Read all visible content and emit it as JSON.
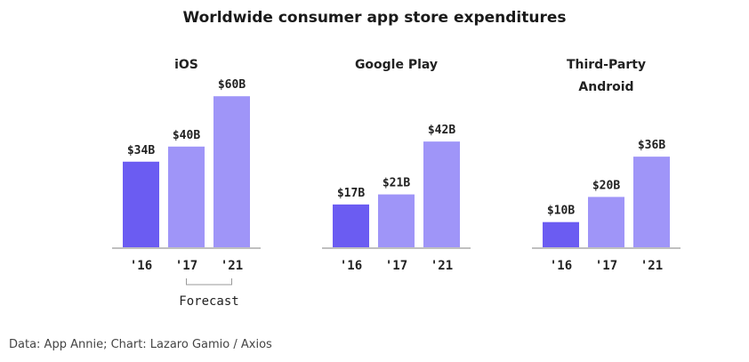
{
  "title": "Worldwide consumer app store expenditures",
  "source": "Data: App Annie; Chart: Lazaro Gamio / Axios",
  "colors": {
    "first": "#6b5cf2",
    "rest": "#9f95f8",
    "axis": "#9a9a9a",
    "bracket": "#999999"
  },
  "chart_data": {
    "type": "bar",
    "title": "Worldwide consumer app store expenditures",
    "unit": "$B",
    "categories": [
      "'16",
      "'17",
      "'21"
    ],
    "annotation": {
      "text": "Forecast",
      "spans": [
        "'17",
        "'21"
      ],
      "group": "iOS"
    },
    "groups": [
      {
        "name_lines": [
          "iOS"
        ],
        "values": [
          34,
          40,
          60
        ],
        "labels": [
          "$34B",
          "$40B",
          "$60B"
        ]
      },
      {
        "name_lines": [
          "Google Play"
        ],
        "values": [
          17,
          21,
          42
        ],
        "labels": [
          "$17B",
          "$21B",
          "$42B"
        ]
      },
      {
        "name_lines": [
          "Third-Party",
          "Android"
        ],
        "values": [
          10,
          20,
          36
        ],
        "labels": [
          "$10B",
          "$20B",
          "$36B"
        ]
      }
    ]
  }
}
